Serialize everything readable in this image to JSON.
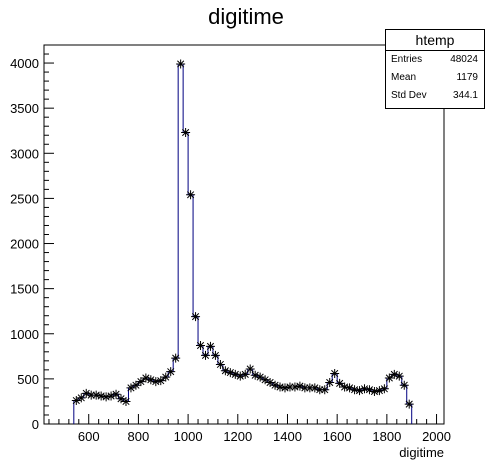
{
  "chart_data": {
    "type": "line",
    "title": "digitime",
    "xlabel": "digitime",
    "ylabel": "",
    "xlim": [
      420,
      2030
    ],
    "ylim": [
      0,
      4200
    ],
    "xticks": [
      600,
      800,
      1000,
      1200,
      1400,
      1600,
      1800,
      2000
    ],
    "yticks": [
      0,
      500,
      1000,
      1500,
      2000,
      2500,
      3000,
      3500,
      4000
    ],
    "bin_width": 20,
    "legend": "top-right stats box",
    "series": [
      {
        "marker": "star",
        "color": "#000080",
        "x": [
          550,
          570,
          590,
          610,
          630,
          650,
          670,
          690,
          710,
          730,
          750,
          770,
          790,
          810,
          830,
          850,
          870,
          890,
          910,
          930,
          950,
          970,
          990,
          1010,
          1030,
          1050,
          1070,
          1090,
          1110,
          1130,
          1150,
          1170,
          1190,
          1210,
          1230,
          1250,
          1270,
          1290,
          1310,
          1330,
          1350,
          1370,
          1390,
          1410,
          1430,
          1450,
          1470,
          1490,
          1510,
          1530,
          1550,
          1570,
          1590,
          1610,
          1630,
          1650,
          1670,
          1690,
          1710,
          1730,
          1750,
          1770,
          1790,
          1810,
          1830,
          1850,
          1870,
          1890
        ],
        "values": [
          260,
          290,
          340,
          320,
          320,
          310,
          300,
          310,
          330,
          280,
          250,
          400,
          430,
          470,
          510,
          490,
          470,
          480,
          520,
          580,
          730,
          3990,
          3230,
          2540,
          1190,
          870,
          760,
          860,
          760,
          660,
          590,
          570,
          550,
          530,
          550,
          610,
          540,
          520,
          490,
          460,
          430,
          410,
          400,
          410,
          410,
          420,
          400,
          400,
          400,
          380,
          380,
          460,
          560,
          450,
          410,
          400,
          380,
          370,
          390,
          380,
          360,
          370,
          390,
          510,
          550,
          530,
          430,
          220
        ]
      }
    ]
  },
  "stats": {
    "title": "htemp",
    "entries_label": "Entries",
    "entries_value": "48024",
    "mean_label": "Mean",
    "mean_value": "1179",
    "stddev_label": "Std Dev",
    "stddev_value": "344.1"
  }
}
